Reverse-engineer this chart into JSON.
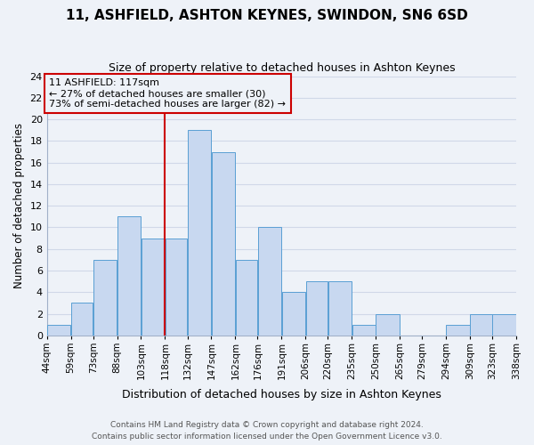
{
  "title": "11, ASHFIELD, ASHTON KEYNES, SWINDON, SN6 6SD",
  "subtitle": "Size of property relative to detached houses in Ashton Keynes",
  "xlabel": "Distribution of detached houses by size in Ashton Keynes",
  "ylabel": "Number of detached properties",
  "bins": [
    44,
    59,
    73,
    88,
    103,
    118,
    132,
    147,
    162,
    176,
    191,
    206,
    220,
    235,
    250,
    265,
    279,
    294,
    309,
    323,
    338
  ],
  "counts": [
    1,
    3,
    7,
    11,
    9,
    9,
    19,
    17,
    7,
    10,
    4,
    5,
    5,
    1,
    2,
    0,
    0,
    1,
    2,
    2
  ],
  "bar_facecolor": "#c8d8f0",
  "bar_edgecolor": "#5a9fd4",
  "vline_color": "#cc0000",
  "vline_x": 118,
  "annotation_title": "11 ASHFIELD: 117sqm",
  "annotation_line1": "← 27% of detached houses are smaller (30)",
  "annotation_line2": "73% of semi-detached houses are larger (82) →",
  "annotation_box_color": "#cc0000",
  "ylim": [
    0,
    24
  ],
  "yticks": [
    0,
    2,
    4,
    6,
    8,
    10,
    12,
    14,
    16,
    18,
    20,
    22,
    24
  ],
  "tick_labels": [
    "44sqm",
    "59sqm",
    "73sqm",
    "88sqm",
    "103sqm",
    "118sqm",
    "132sqm",
    "147sqm",
    "162sqm",
    "176sqm",
    "191sqm",
    "206sqm",
    "220sqm",
    "235sqm",
    "250sqm",
    "265sqm",
    "279sqm",
    "294sqm",
    "309sqm",
    "323sqm",
    "338sqm"
  ],
  "grid_color": "#d0d8e8",
  "background_color": "#eef2f8",
  "footer1": "Contains HM Land Registry data © Crown copyright and database right 2024.",
  "footer2": "Contains public sector information licensed under the Open Government Licence v3.0."
}
